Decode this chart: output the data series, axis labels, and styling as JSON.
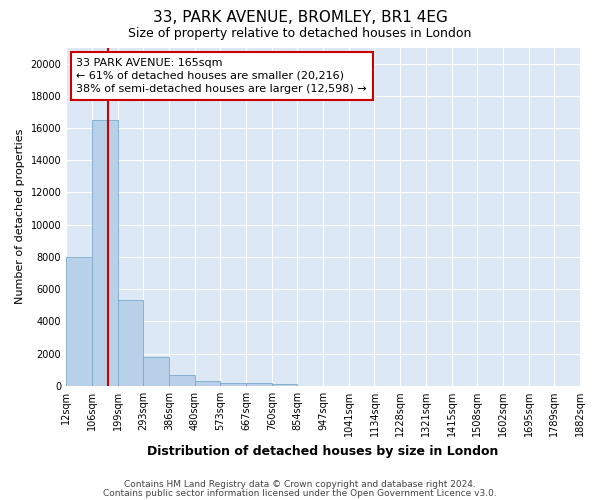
{
  "title1": "33, PARK AVENUE, BROMLEY, BR1 4EG",
  "title2": "Size of property relative to detached houses in London",
  "xlabel": "Distribution of detached houses by size in London",
  "ylabel": "Number of detached properties",
  "bin_labels": [
    "12sqm",
    "106sqm",
    "199sqm",
    "293sqm",
    "386sqm",
    "480sqm",
    "573sqm",
    "667sqm",
    "760sqm",
    "854sqm",
    "947sqm",
    "1041sqm",
    "1134sqm",
    "1228sqm",
    "1321sqm",
    "1415sqm",
    "1508sqm",
    "1602sqm",
    "1695sqm",
    "1789sqm",
    "1882sqm"
  ],
  "bar_values": [
    8000,
    16500,
    5300,
    1800,
    700,
    300,
    200,
    150,
    130,
    0,
    0,
    0,
    0,
    0,
    0,
    0,
    0,
    0,
    0,
    0
  ],
  "bar_color": "#b8d0e8",
  "bar_edge_color": "#7aaac8",
  "property_line_color": "#cc0000",
  "annotation_line1": "33 PARK AVENUE: 165sqm",
  "annotation_line2": "← 61% of detached houses are smaller (20,216)",
  "annotation_line3": "38% of semi-detached houses are larger (12,598) →",
  "annotation_box_facecolor": "#ffffff",
  "annotation_box_edgecolor": "#cc0000",
  "ylim": [
    0,
    21000
  ],
  "yticks": [
    0,
    2000,
    4000,
    6000,
    8000,
    10000,
    12000,
    14000,
    16000,
    18000,
    20000
  ],
  "fig_facecolor": "#ffffff",
  "ax_facecolor": "#dce8f5",
  "grid_color": "#ffffff",
  "footer1": "Contains HM Land Registry data © Crown copyright and database right 2024.",
  "footer2": "Contains public sector information licensed under the Open Government Licence v3.0.",
  "title1_fontsize": 11,
  "title2_fontsize": 9,
  "xlabel_fontsize": 9,
  "ylabel_fontsize": 8,
  "tick_fontsize": 7,
  "footer_fontsize": 6.5,
  "annotation_fontsize": 8
}
